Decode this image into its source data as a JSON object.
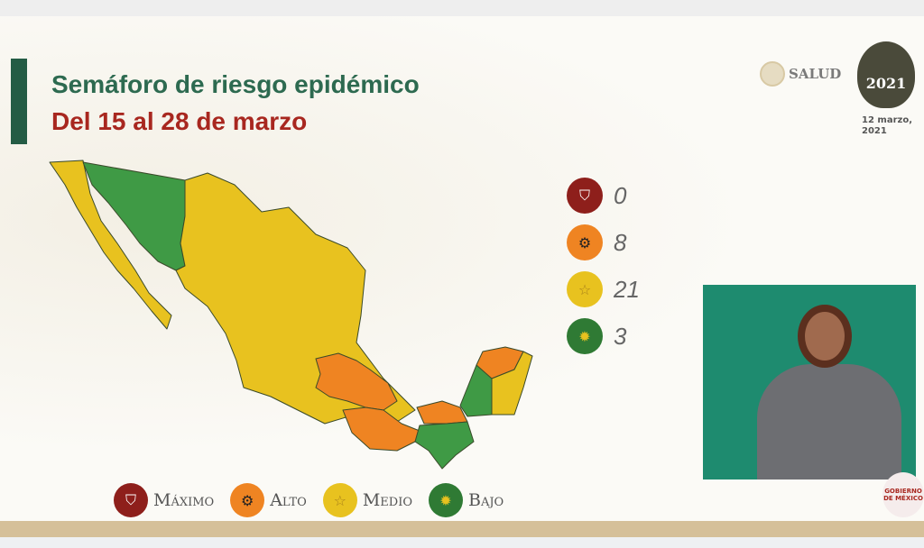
{
  "header": {
    "title": "Semáforo de riesgo epidémico",
    "subtitle": "Del 15 al 28 de marzo",
    "agency": "SALUD",
    "logo_year": "2021",
    "date": "12 marzo, 2021"
  },
  "colors": {
    "maximo": "#8e1f1b",
    "alto": "#ef8422",
    "medio": "#e8c21f",
    "bajo": "#3f9a45",
    "title": "#2d6a50",
    "subtitle": "#a8271f"
  },
  "counts": [
    {
      "level": "maximo",
      "icon": "shield-icon",
      "value": "0"
    },
    {
      "level": "alto",
      "icon": "gear-icon",
      "value": "8"
    },
    {
      "level": "medio",
      "icon": "star-icon",
      "value": "21"
    },
    {
      "level": "bajo",
      "icon": "sun-icon",
      "value": "3"
    }
  ],
  "legend": [
    {
      "icon": "shield-icon",
      "label": "Máximo"
    },
    {
      "icon": "gear-icon",
      "label": "Alto"
    },
    {
      "icon": "star-icon",
      "label": "Medio"
    },
    {
      "icon": "sun-icon",
      "label": "Bajo"
    }
  ],
  "footer_logo": "GOBIERNO DE MÉXICO"
}
